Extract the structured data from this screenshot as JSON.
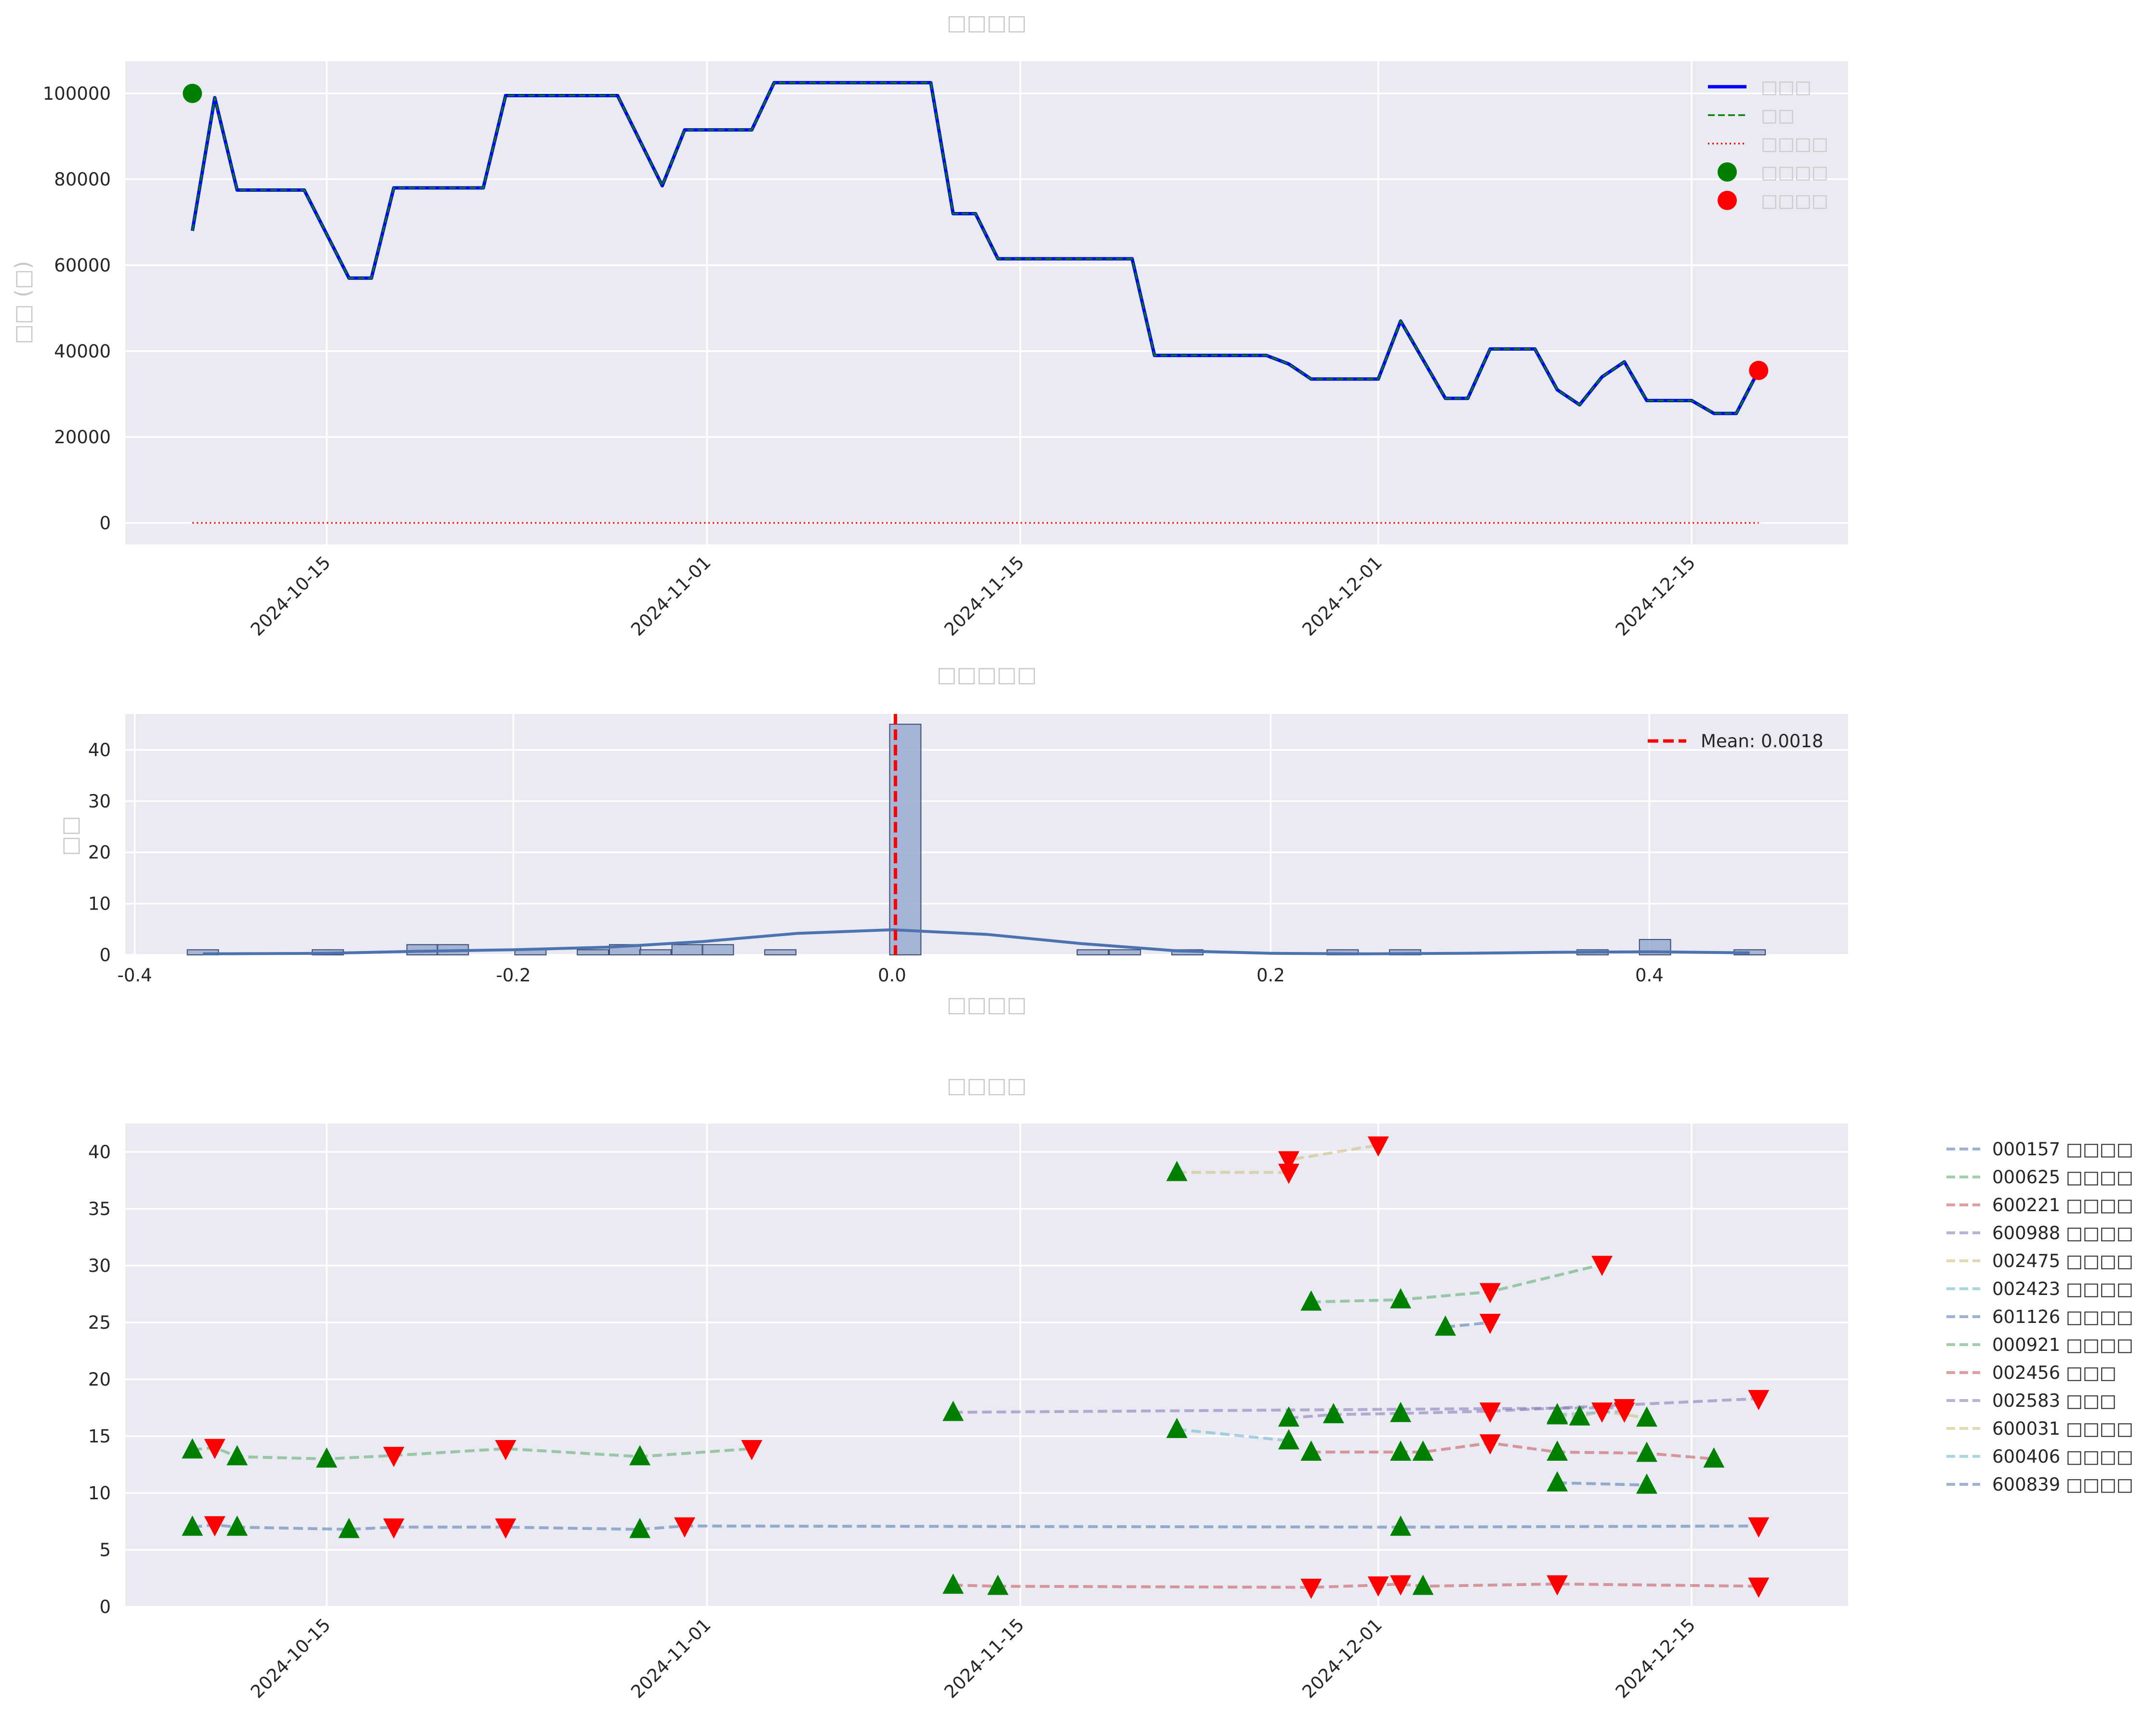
{
  "chart_data": [
    {
      "type": "line",
      "title": "□□□□",
      "ylabel": "□□ (□)",
      "xlabel": "",
      "x_range": [
        "2024-10-06",
        "2024-12-22"
      ],
      "ylim": [
        -5000,
        107500
      ],
      "yticks": [
        0,
        20000,
        40000,
        60000,
        80000,
        100000
      ],
      "xticks": [
        "2024-10-15",
        "2024-11-01",
        "2024-11-15",
        "2024-12-01",
        "2024-12-15"
      ],
      "grid": true,
      "legend_position": "top-right",
      "legend": [
        "□□□",
        "□□",
        "□□□□",
        "□□□□",
        "□□□□"
      ],
      "colors": {
        "total": "#0000ff",
        "market": "#008000",
        "cash": "#ff0000",
        "start": "#008000",
        "end": "#ff0000"
      },
      "series": [
        {
          "name": "□□□",
          "style": "solid",
          "x": [
            "2024-10-09",
            "2024-10-10",
            "2024-10-11",
            "2024-10-14",
            "2024-10-16",
            "2024-10-17",
            "2024-10-18",
            "2024-10-22",
            "2024-10-23",
            "2024-10-28",
            "2024-10-30",
            "2024-10-31",
            "2024-11-03",
            "2024-11-04",
            "2024-11-11",
            "2024-11-12",
            "2024-11-13",
            "2024-11-14",
            "2024-11-20",
            "2024-11-21",
            "2024-11-26",
            "2024-11-27",
            "2024-11-28",
            "2024-12-01",
            "2024-12-02",
            "2024-12-04",
            "2024-12-05",
            "2024-12-06",
            "2024-12-08",
            "2024-12-09",
            "2024-12-10",
            "2024-12-11",
            "2024-12-12",
            "2024-12-13",
            "2024-12-15",
            "2024-12-16",
            "2024-12-17",
            "2024-12-18"
          ],
          "values": [
            68000,
            99000,
            77500,
            77500,
            57000,
            57000,
            78000,
            78000,
            99500,
            99500,
            78500,
            91500,
            91500,
            102500,
            102500,
            72000,
            72000,
            61500,
            61500,
            39000,
            39000,
            37000,
            33500,
            33500,
            47000,
            29000,
            29000,
            40500,
            40500,
            31000,
            27500,
            34000,
            37500,
            28500,
            28500,
            25500,
            25500,
            35500
          ]
        },
        {
          "name": "□□",
          "style": "dashed",
          "x": [
            "2024-10-09",
            "2024-10-10",
            "2024-10-11",
            "2024-10-14",
            "2024-10-16",
            "2024-10-17",
            "2024-10-18",
            "2024-10-22",
            "2024-10-23",
            "2024-10-28",
            "2024-10-30",
            "2024-10-31",
            "2024-11-03",
            "2024-11-04",
            "2024-11-11",
            "2024-11-12",
            "2024-11-13",
            "2024-11-14",
            "2024-11-20",
            "2024-11-21",
            "2024-11-26",
            "2024-11-27",
            "2024-11-28",
            "2024-12-01",
            "2024-12-02",
            "2024-12-04",
            "2024-12-05",
            "2024-12-06",
            "2024-12-08",
            "2024-12-09",
            "2024-12-10",
            "2024-12-11",
            "2024-12-12",
            "2024-12-13",
            "2024-12-15",
            "2024-12-16",
            "2024-12-17",
            "2024-12-18"
          ],
          "values": [
            68000,
            99000,
            77500,
            77500,
            57000,
            57000,
            78000,
            78000,
            99500,
            99500,
            78500,
            91500,
            91500,
            102500,
            102500,
            72000,
            72000,
            61500,
            61500,
            39000,
            39000,
            37000,
            33500,
            33500,
            47000,
            29000,
            29000,
            40500,
            40500,
            31000,
            27500,
            34000,
            37500,
            28500,
            28500,
            25500,
            25500,
            35500
          ]
        },
        {
          "name": "□□□□",
          "style": "dotted",
          "x": [
            "2024-10-09",
            "2024-12-18"
          ],
          "values": [
            0,
            0
          ]
        }
      ],
      "points": [
        {
          "name": "□□□□",
          "x": "2024-10-09",
          "y": 100000,
          "color": "#008000"
        },
        {
          "name": "□□□□",
          "x": "2024-12-18",
          "y": 35500,
          "color": "#ff0000"
        }
      ]
    },
    {
      "type": "histogram",
      "title": "□□□□□",
      "xlabel": "□□□□",
      "ylabel": "□□",
      "xlim": [
        -0.405,
        0.505
      ],
      "ylim": [
        0,
        47
      ],
      "xticks": [
        -0.4,
        -0.2,
        0.0,
        0.2,
        0.4
      ],
      "yticks": [
        0,
        10,
        20,
        30,
        40
      ],
      "grid": true,
      "legend_position": "top-right",
      "mean_label": "Mean: 0.0018",
      "mean": 0.0018,
      "bin_width": 0.0165,
      "bars": [
        {
          "x": -0.364,
          "count": 1
        },
        {
          "x": -0.298,
          "count": 1
        },
        {
          "x": -0.248,
          "count": 2
        },
        {
          "x": -0.232,
          "count": 2
        },
        {
          "x": -0.191,
          "count": 1
        },
        {
          "x": -0.158,
          "count": 1
        },
        {
          "x": -0.141,
          "count": 2
        },
        {
          "x": -0.125,
          "count": 1
        },
        {
          "x": -0.108,
          "count": 2
        },
        {
          "x": -0.092,
          "count": 2
        },
        {
          "x": -0.059,
          "count": 1
        },
        {
          "x": 0.007,
          "count": 45
        },
        {
          "x": 0.106,
          "count": 1
        },
        {
          "x": 0.123,
          "count": 1
        },
        {
          "x": 0.156,
          "count": 1
        },
        {
          "x": 0.238,
          "count": 1
        },
        {
          "x": 0.271,
          "count": 1
        },
        {
          "x": 0.37,
          "count": 1
        },
        {
          "x": 0.403,
          "count": 3
        },
        {
          "x": 0.453,
          "count": 1
        }
      ],
      "kde": {
        "x": [
          -0.364,
          -0.3,
          -0.25,
          -0.2,
          -0.15,
          -0.1,
          -0.05,
          0.0,
          0.05,
          0.1,
          0.15,
          0.2,
          0.25,
          0.3,
          0.35,
          0.4,
          0.453
        ],
        "y": [
          0.2,
          0.3,
          0.7,
          1.0,
          1.5,
          2.6,
          4.2,
          4.9,
          4.0,
          2.2,
          0.8,
          0.3,
          0.2,
          0.3,
          0.5,
          0.6,
          0.4
        ]
      },
      "colors": {
        "bar": "#8da0cb",
        "kde": "#4c72b0",
        "mean": "#ff0000"
      }
    },
    {
      "type": "line",
      "title": "□□□□",
      "xlabel": "",
      "ylabel": "",
      "x_range": [
        "2024-10-06",
        "2024-12-22"
      ],
      "ylim": [
        0,
        42.5
      ],
      "yticks": [
        0,
        5,
        10,
        15,
        20,
        25,
        30,
        35,
        40
      ],
      "xticks": [
        "2024-10-15",
        "2024-11-01",
        "2024-11-15",
        "2024-12-01",
        "2024-12-15"
      ],
      "grid": true,
      "legend_position": "outside-right",
      "marker_colors": {
        "buy": "#008000",
        "sell": "#ff0000"
      },
      "series": [
        {
          "name": "000157 □□□□",
          "color": "#4c72b0",
          "trades": [
            [
              "2024-10-09",
              7.0,
              "buy"
            ],
            [
              "2024-10-10",
              7.2,
              "sell"
            ],
            [
              "2024-10-11",
              7.0,
              "buy"
            ],
            [
              "2024-10-16",
              6.8,
              "buy"
            ],
            [
              "2024-10-18",
              7.0,
              "sell"
            ],
            [
              "2024-10-23",
              7.0,
              "sell"
            ],
            [
              "2024-10-29",
              6.8,
              "buy"
            ],
            [
              "2024-10-31",
              7.1,
              "sell"
            ],
            [
              "2024-12-02",
              7.0,
              "buy"
            ],
            [
              "2024-12-18",
              7.1,
              "sell"
            ]
          ]
        },
        {
          "name": "000625 □□□□",
          "color": "#55a868",
          "trades": [
            [
              "2024-10-09",
              13.8,
              "buy"
            ],
            [
              "2024-10-10",
              14.0,
              "sell"
            ],
            [
              "2024-10-11",
              13.2,
              "buy"
            ],
            [
              "2024-10-15",
              13.0,
              "buy"
            ],
            [
              "2024-10-18",
              13.3,
              "sell"
            ],
            [
              "2024-10-23",
              13.9,
              "sell"
            ],
            [
              "2024-10-29",
              13.2,
              "buy"
            ],
            [
              "2024-11-03",
              13.9,
              "sell"
            ]
          ]
        },
        {
          "name": "600221 □□□□",
          "color": "#c44e52",
          "trades": [
            [
              "2024-11-12",
              1.9,
              "buy"
            ],
            [
              "2024-11-14",
              1.8,
              "buy"
            ],
            [
              "2024-11-28",
              1.7,
              "sell"
            ],
            [
              "2024-12-01",
              1.9,
              "sell"
            ],
            [
              "2024-12-02",
              2.0,
              "sell"
            ],
            [
              "2024-12-03",
              1.8,
              "buy"
            ],
            [
              "2024-12-09",
              2.0,
              "sell"
            ],
            [
              "2024-12-18",
              1.8,
              "sell"
            ]
          ]
        },
        {
          "name": "600988 □□□□",
          "color": "#8172b2",
          "trades": [
            [
              "2024-11-12",
              17.1,
              "buy"
            ],
            [
              "2024-12-12",
              17.5,
              "sell"
            ]
          ]
        },
        {
          "name": "002475 □□□□",
          "color": "#ccb974",
          "trades": [
            [
              "2024-11-22",
              38.2,
              "buy"
            ],
            [
              "2024-11-27",
              38.2,
              "sell"
            ],
            [
              "2024-11-27",
              39.3,
              "sell"
            ],
            [
              "2024-12-01",
              40.6,
              "sell"
            ]
          ]
        },
        {
          "name": "002423 □□□□",
          "color": "#64b5cd",
          "trades": [
            [
              "2024-11-22",
              15.6,
              "buy"
            ],
            [
              "2024-11-27",
              14.6,
              "buy"
            ]
          ]
        },
        {
          "name": "601126 □□□□",
          "color": "#4c72b0",
          "trades": [
            [
              "2024-12-04",
              24.6,
              "buy"
            ],
            [
              "2024-12-06",
              25.0,
              "sell"
            ]
          ]
        },
        {
          "name": "000921 □□□□",
          "color": "#55a868",
          "trades": [
            [
              "2024-11-28",
              26.8,
              "buy"
            ],
            [
              "2024-12-02",
              27.0,
              "buy"
            ],
            [
              "2024-12-06",
              27.7,
              "sell"
            ],
            [
              "2024-12-11",
              30.1,
              "sell"
            ]
          ]
        },
        {
          "name": "002456 □□□",
          "color": "#c44e52",
          "trades": [
            [
              "2024-11-28",
              13.6,
              "buy"
            ],
            [
              "2024-12-02",
              13.6,
              "buy"
            ],
            [
              "2024-12-03",
              13.6,
              "buy"
            ],
            [
              "2024-12-06",
              14.4,
              "sell"
            ],
            [
              "2024-12-09",
              13.6,
              "buy"
            ],
            [
              "2024-12-13",
              13.5,
              "buy"
            ],
            [
              "2024-12-16",
              13.0,
              "buy"
            ]
          ]
        },
        {
          "name": "002583 □□□",
          "color": "#8172b2",
          "trades": [
            [
              "2024-11-27",
              16.6,
              "buy"
            ],
            [
              "2024-11-29",
              16.9,
              "buy"
            ],
            [
              "2024-12-02",
              17.0,
              "buy"
            ],
            [
              "2024-12-06",
              17.2,
              "sell"
            ],
            [
              "2024-12-18",
              18.3,
              "sell"
            ]
          ]
        },
        {
          "name": "600031 □□□□",
          "color": "#ccb974",
          "trades": [
            [
              "2024-12-09",
              16.8,
              "buy"
            ],
            [
              "2024-12-10",
              16.7,
              "buy"
            ],
            [
              "2024-12-11",
              17.2,
              "sell"
            ],
            [
              "2024-12-13",
              16.6,
              "buy"
            ]
          ]
        },
        {
          "name": "600406 □□□□",
          "color": "#64b5cd",
          "trades": [
            [
              "2024-12-09",
              16.9,
              "buy"
            ],
            [
              "2024-12-12",
              17.2,
              "sell"
            ]
          ]
        },
        {
          "name": "600839 □□□□",
          "color": "#4c72b0",
          "trades": [
            [
              "2024-12-09",
              10.9,
              "buy"
            ],
            [
              "2024-12-13",
              10.7,
              "buy"
            ]
          ]
        }
      ]
    }
  ]
}
